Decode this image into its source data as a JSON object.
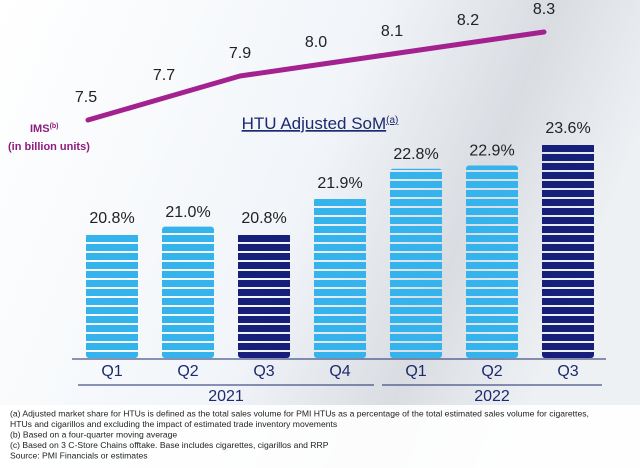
{
  "chart_data": {
    "type": "bar",
    "title": "HTU Adjusted SoM",
    "title_note": "(a)",
    "categories": [
      "Q1",
      "Q2",
      "Q3",
      "Q4",
      "Q1",
      "Q2",
      "Q3"
    ],
    "years": [
      "2021",
      "2021",
      "2021",
      "2021",
      "2022",
      "2022",
      "2022"
    ],
    "values": [
      20.8,
      21.0,
      20.8,
      21.9,
      22.8,
      22.9,
      23.6
    ],
    "value_labels": [
      "20.8%",
      "21.0%",
      "20.8%",
      "21.9%",
      "22.8%",
      "22.9%",
      "23.6%"
    ],
    "colors": [
      "#35b3ec",
      "#35b3ec",
      "#16207a",
      "#35b3ec",
      "#35b3ec",
      "#35b3ec",
      "#16207a"
    ],
    "line": {
      "name": "IMS",
      "name_note": "(b)",
      "unit": "(in billion units)",
      "color": "#a3228f",
      "values": [
        7.5,
        7.7,
        7.9,
        8.0,
        8.1,
        8.2,
        8.3
      ],
      "value_labels": [
        "7.5",
        "7.7",
        "7.9",
        "8.0",
        "8.1",
        "8.2",
        "8.3"
      ]
    },
    "notes": [
      "(a) Adjusted market share for HTUs is defined as the total sales volume for PMI HTUs as a percentage of the total estimated sales volume for cigarettes,",
      "HTUs and cigarillos and excluding the impact of estimated trade inventory movements",
      "(b) Based on a four-quarter moving average",
      "(c) Based on 3 C-Store Chains offtake. Base includes cigarettes, cigarillos and RRP",
      "Source: PMI Financials or estimates"
    ]
  }
}
